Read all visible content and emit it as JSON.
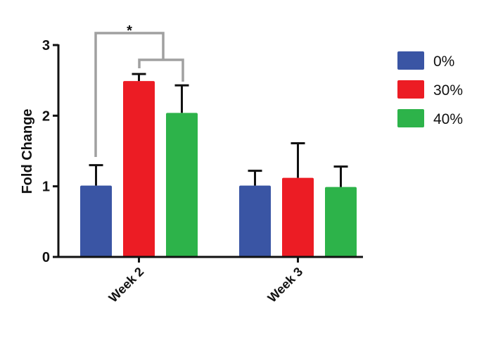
{
  "chart_data": {
    "type": "bar",
    "title": "",
    "xlabel": "",
    "ylabel": "Fold Change",
    "ylim": [
      0,
      3
    ],
    "yticks": [
      "0",
      "1",
      "2",
      "3"
    ],
    "categories": [
      "Week 2",
      "Week 3"
    ],
    "series": [
      {
        "name": "0%",
        "color": "#3a55a4",
        "values": [
          1.01,
          1.01
        ],
        "error_upper": [
          1.3,
          1.22
        ]
      },
      {
        "name": "30%",
        "color": "#ec1c24",
        "values": [
          2.49,
          1.12
        ],
        "error_upper": [
          2.59,
          1.61
        ]
      },
      {
        "name": "40%",
        "color": "#2db34a",
        "values": [
          2.04,
          0.99
        ],
        "error_upper": [
          2.43,
          1.28
        ]
      }
    ],
    "legend_position": "right",
    "grid": false,
    "annotations": [
      {
        "text": "*",
        "type": "significance-bracket",
        "between": "Week 2 0% vs Week 2 30%/40%",
        "color": "#a0a0a0"
      }
    ]
  }
}
